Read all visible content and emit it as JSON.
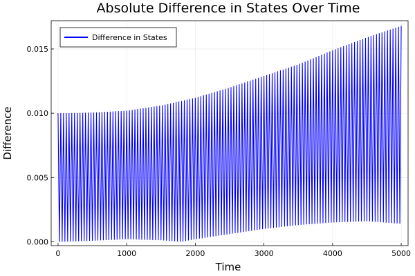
{
  "chart_data": {
    "type": "line",
    "title": "Absolute Difference in States Over Time",
    "xlabel": "Time",
    "ylabel": "Difference",
    "xlim": [
      -100,
      5100
    ],
    "ylim": [
      -0.0003,
      0.0172
    ],
    "x_ticks": [
      0,
      1000,
      2000,
      3000,
      4000,
      5000
    ],
    "x_tick_labels": [
      "0",
      "1000",
      "2000",
      "3000",
      "4000",
      "5000"
    ],
    "y_ticks": [
      0,
      0.005,
      0.01,
      0.015
    ],
    "y_tick_labels": [
      "0.000",
      "0.005",
      "0.010",
      "0.015"
    ],
    "grid": true,
    "legend": {
      "position": "top-left",
      "entries": [
        "Difference in States"
      ]
    },
    "series": [
      {
        "name": "Difference in States",
        "color": "#0000ff",
        "style": "rapid oscillation between lower and upper envelopes",
        "x_range": [
          0,
          5000
        ],
        "oscillation_period": 40,
        "upper_envelope": {
          "x": [
            0,
            500,
            1000,
            1500,
            2000,
            2500,
            3000,
            3500,
            4000,
            4500,
            5000
          ],
          "y": [
            0.01,
            0.01005,
            0.0102,
            0.0106,
            0.0112,
            0.012,
            0.0129,
            0.0138,
            0.0149,
            0.0159,
            0.0168
          ]
        },
        "lower_envelope": {
          "x": [
            0,
            500,
            1000,
            1500,
            1800,
            2000,
            2500,
            3000,
            3500,
            4000,
            4500,
            5000
          ],
          "y": [
            0.0,
            8e-05,
            0.0002,
            0.00012,
            0.0,
            0.0002,
            0.0006,
            0.001,
            0.0013,
            0.0015,
            0.0016,
            0.0014
          ]
        }
      }
    ]
  }
}
